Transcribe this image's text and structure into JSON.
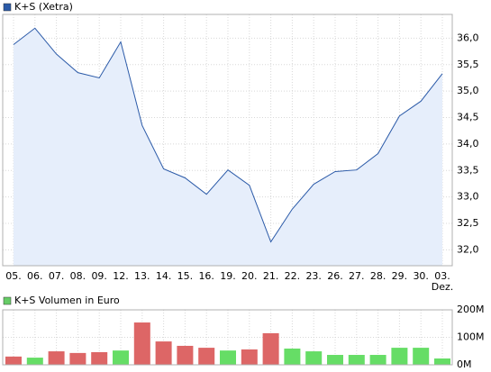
{
  "chart_data": [
    {
      "type": "area",
      "legend": "K+S (Xetra)",
      "color": "#2b5aa8",
      "fill": "#e6eefb",
      "categories": [
        "05.",
        "06.",
        "07.",
        "08.",
        "09.",
        "12.",
        "13.",
        "14.",
        "15.",
        "16.",
        "19.",
        "20.",
        "21.",
        "22.",
        "23.",
        "26.",
        "27.",
        "28.",
        "29.",
        "30.",
        "03."
      ],
      "x_annotation": "Dez.",
      "values": [
        35.88,
        36.19,
        35.7,
        35.35,
        35.25,
        35.93,
        34.35,
        33.53,
        33.36,
        33.05,
        33.51,
        33.22,
        32.15,
        32.77,
        33.24,
        33.48,
        33.51,
        33.82,
        34.53,
        34.81,
        35.33
      ],
      "ylim": [
        31.7,
        36.45
      ],
      "yticks": [
        {
          "value": 32,
          "label": "32,0"
        },
        {
          "value": 32.5,
          "label": "32,5"
        },
        {
          "value": 33,
          "label": "33,0"
        },
        {
          "value": 33.5,
          "label": "33,5"
        },
        {
          "value": 34,
          "label": "34,0"
        },
        {
          "value": 34.5,
          "label": "34,5"
        },
        {
          "value": 35,
          "label": "35,0"
        },
        {
          "value": 35.5,
          "label": "35,5"
        },
        {
          "value": 36,
          "label": "36,0"
        }
      ],
      "grid": true
    },
    {
      "type": "bar",
      "legend": "K+S Volumen in Euro",
      "legend_color": "#66cc66",
      "values": [
        30,
        26,
        49,
        43,
        46,
        52,
        154,
        85,
        69,
        62,
        52,
        56,
        115,
        59,
        49,
        36,
        36,
        36,
        62,
        62,
        23
      ],
      "colors": [
        "#dd6666",
        "#66dd66",
        "#dd6666",
        "#dd6666",
        "#dd6666",
        "#66dd66",
        "#dd6666",
        "#dd6666",
        "#dd6666",
        "#dd6666",
        "#66dd66",
        "#dd6666",
        "#dd6666",
        "#66dd66",
        "#66dd66",
        "#66dd66",
        "#66dd66",
        "#66dd66",
        "#66dd66",
        "#66dd66",
        "#66dd66"
      ],
      "ylim": [
        0,
        200
      ],
      "yticks": [
        {
          "value": 0,
          "label": "0M"
        },
        {
          "value": 100,
          "label": "100M"
        },
        {
          "value": 200,
          "label": "200M"
        }
      ],
      "grid": true
    }
  ]
}
